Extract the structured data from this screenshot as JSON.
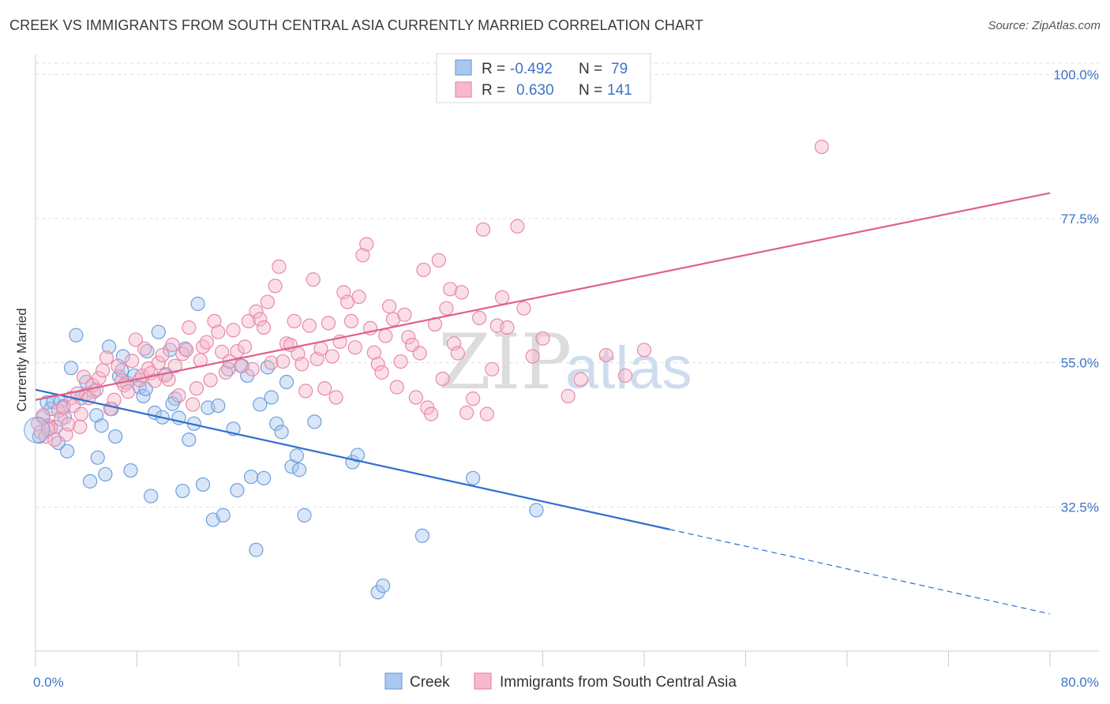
{
  "title": "CREEK VS IMMIGRANTS FROM SOUTH CENTRAL ASIA CURRENTLY MARRIED CORRELATION CHART",
  "source": "Source: ZipAtlas.com",
  "watermark": {
    "zip": "ZIP",
    "atlas": "atlas"
  },
  "legend_top": [
    {
      "r_label": "R =",
      "r_value": "-0.492",
      "n_label": "N =",
      "n_value": "79",
      "color": "#a9c8ef",
      "stroke": "#6e9fdc"
    },
    {
      "r_label": "R =",
      "r_value": "0.630",
      "n_label": "N =",
      "n_value": "141",
      "color": "#f7b8cc",
      "stroke": "#e88aa8"
    }
  ],
  "chart_data": {
    "type": "scatter",
    "title": "CREEK VS IMMIGRANTS FROM SOUTH CENTRAL ASIA CURRENTLY MARRIED CORRELATION CHART",
    "xlabel": "",
    "ylabel": "Currently Married",
    "xlim": [
      0,
      80
    ],
    "ylim": [
      10,
      103
    ],
    "x_tick_labels": [
      {
        "value": 0,
        "label": "0.0%"
      },
      {
        "value": 80,
        "label": "80.0%"
      }
    ],
    "x_minor_ticks": [
      0,
      8,
      16,
      24,
      32,
      40,
      48,
      56,
      64,
      72,
      80
    ],
    "y_ticks": [
      {
        "value": 32.5,
        "label": "32.5%"
      },
      {
        "value": 55.0,
        "label": "55.0%"
      },
      {
        "value": 77.5,
        "label": "77.5%"
      },
      {
        "value": 100.0,
        "label": "100.0%"
      }
    ],
    "grid": true,
    "legend_position": "top-center",
    "series": [
      {
        "name": "Creek",
        "color": "#a9c8ef",
        "stroke": "#6e9fdc",
        "line_color": "#2f6fcf",
        "trend": {
          "x0": 0,
          "y0": 50.8,
          "x1": 50,
          "y1": 29.0,
          "dash_to_x": 80,
          "dash_to_y": 15.8
        },
        "points": [
          [
            0.3,
            43.5
          ],
          [
            0.6,
            46.5
          ],
          [
            0.9,
            48.8
          ],
          [
            1.2,
            47.8
          ],
          [
            1.4,
            48.9
          ],
          [
            1.6,
            45.0
          ],
          [
            1.8,
            42.5
          ],
          [
            2.0,
            49.0
          ],
          [
            2.3,
            46.5
          ],
          [
            2.5,
            41.2
          ],
          [
            2.8,
            54.2
          ],
          [
            3.2,
            59.3
          ],
          [
            3.6,
            49.5
          ],
          [
            4.0,
            52.0
          ],
          [
            4.3,
            36.5
          ],
          [
            4.6,
            50.5
          ],
          [
            4.9,
            40.2
          ],
          [
            5.2,
            45.2
          ],
          [
            5.5,
            37.6
          ],
          [
            5.8,
            57.5
          ],
          [
            6.0,
            47.8
          ],
          [
            6.3,
            43.5
          ],
          [
            6.6,
            52.9
          ],
          [
            6.9,
            56.0
          ],
          [
            7.2,
            51.9
          ],
          [
            7.5,
            38.2
          ],
          [
            7.8,
            53.0
          ],
          [
            8.2,
            51.2
          ],
          [
            8.5,
            49.8
          ],
          [
            8.8,
            56.8
          ],
          [
            9.1,
            34.2
          ],
          [
            9.4,
            47.2
          ],
          [
            9.7,
            59.8
          ],
          [
            10.0,
            46.5
          ],
          [
            10.3,
            53.2
          ],
          [
            10.6,
            57.0
          ],
          [
            11.0,
            49.4
          ],
          [
            11.3,
            46.4
          ],
          [
            11.6,
            35.0
          ],
          [
            11.8,
            57.2
          ],
          [
            12.1,
            43.0
          ],
          [
            12.5,
            45.5
          ],
          [
            12.8,
            64.2
          ],
          [
            13.2,
            36.0
          ],
          [
            13.6,
            48.0
          ],
          [
            14.0,
            30.5
          ],
          [
            14.4,
            48.3
          ],
          [
            14.8,
            31.2
          ],
          [
            15.2,
            54.0
          ],
          [
            15.6,
            44.7
          ],
          [
            15.9,
            35.1
          ],
          [
            16.3,
            54.5
          ],
          [
            16.7,
            53.0
          ],
          [
            17.0,
            37.2
          ],
          [
            17.4,
            25.8
          ],
          [
            17.7,
            48.5
          ],
          [
            18.0,
            37.0
          ],
          [
            18.3,
            54.3
          ],
          [
            18.6,
            49.6
          ],
          [
            19.0,
            45.5
          ],
          [
            19.4,
            44.2
          ],
          [
            19.8,
            52.0
          ],
          [
            20.2,
            38.8
          ],
          [
            20.6,
            40.5
          ],
          [
            20.8,
            38.3
          ],
          [
            21.2,
            31.2
          ],
          [
            22.0,
            45.8
          ],
          [
            25.0,
            39.5
          ],
          [
            25.4,
            40.6
          ],
          [
            27.0,
            19.2
          ],
          [
            27.4,
            20.2
          ],
          [
            30.5,
            28.0
          ],
          [
            34.5,
            37.0
          ],
          [
            39.5,
            32.0
          ],
          [
            2.2,
            48.2
          ],
          [
            4.8,
            46.8
          ],
          [
            6.8,
            53.8
          ],
          [
            8.7,
            50.9
          ],
          [
            10.8,
            48.6
          ]
        ]
      },
      {
        "name": "Immigrants from South Central Asia",
        "color": "#f7b8cc",
        "stroke": "#e88aa8",
        "line_color": "#e0608c",
        "trend": {
          "x0": 0,
          "y0": 49.2,
          "x1": 80,
          "y1": 81.5
        },
        "points": [
          [
            0.2,
            45.5
          ],
          [
            0.4,
            44.2
          ],
          [
            0.6,
            46.8
          ],
          [
            0.8,
            43.5
          ],
          [
            1.0,
            45.2
          ],
          [
            1.2,
            44.8
          ],
          [
            1.5,
            43.0
          ],
          [
            1.8,
            47.5
          ],
          [
            2.0,
            46.2
          ],
          [
            2.2,
            48.0
          ],
          [
            2.4,
            43.8
          ],
          [
            2.6,
            45.4
          ],
          [
            2.8,
            49.5
          ],
          [
            3.0,
            48.3
          ],
          [
            3.3,
            50.2
          ],
          [
            3.6,
            47.0
          ],
          [
            3.8,
            52.8
          ],
          [
            4.0,
            50.1
          ],
          [
            4.2,
            49.5
          ],
          [
            4.5,
            51.5
          ],
          [
            4.8,
            50.8
          ],
          [
            5.0,
            52.6
          ],
          [
            5.3,
            53.8
          ],
          [
            5.6,
            55.8
          ],
          [
            5.9,
            47.8
          ],
          [
            6.2,
            49.2
          ],
          [
            6.5,
            54.5
          ],
          [
            6.8,
            52.2
          ],
          [
            7.0,
            51.5
          ],
          [
            7.3,
            50.5
          ],
          [
            7.6,
            55.3
          ],
          [
            7.9,
            58.6
          ],
          [
            8.2,
            52.3
          ],
          [
            8.4,
            53.0
          ],
          [
            8.6,
            57.2
          ],
          [
            8.9,
            54.1
          ],
          [
            9.1,
            53.4
          ],
          [
            9.4,
            52.2
          ],
          [
            9.7,
            55.0
          ],
          [
            10.0,
            56.2
          ],
          [
            10.2,
            53.0
          ],
          [
            10.5,
            52.4
          ],
          [
            10.8,
            57.8
          ],
          [
            11.0,
            54.5
          ],
          [
            11.3,
            49.9
          ],
          [
            11.6,
            56.4
          ],
          [
            11.9,
            57.0
          ],
          [
            12.1,
            60.5
          ],
          [
            12.4,
            48.5
          ],
          [
            12.7,
            51.0
          ],
          [
            13.0,
            55.4
          ],
          [
            13.2,
            57.5
          ],
          [
            13.5,
            58.2
          ],
          [
            13.8,
            52.3
          ],
          [
            14.1,
            61.5
          ],
          [
            14.4,
            59.8
          ],
          [
            14.7,
            56.7
          ],
          [
            15.0,
            53.5
          ],
          [
            15.3,
            55.2
          ],
          [
            15.6,
            60.1
          ],
          [
            15.9,
            56.8
          ],
          [
            16.2,
            54.5
          ],
          [
            16.5,
            57.5
          ],
          [
            16.8,
            61.5
          ],
          [
            17.1,
            54.0
          ],
          [
            17.4,
            63.0
          ],
          [
            17.7,
            61.8
          ],
          [
            18.0,
            60.5
          ],
          [
            18.3,
            64.5
          ],
          [
            18.6,
            55.0
          ],
          [
            18.9,
            67.0
          ],
          [
            19.2,
            70.0
          ],
          [
            19.5,
            55.2
          ],
          [
            19.8,
            58.0
          ],
          [
            20.1,
            57.8
          ],
          [
            20.4,
            61.5
          ],
          [
            20.7,
            56.4
          ],
          [
            21.0,
            54.8
          ],
          [
            21.3,
            50.6
          ],
          [
            21.6,
            60.8
          ],
          [
            21.9,
            68.0
          ],
          [
            22.2,
            55.6
          ],
          [
            22.5,
            57.2
          ],
          [
            22.8,
            51.0
          ],
          [
            23.1,
            61.2
          ],
          [
            23.4,
            56.0
          ],
          [
            23.7,
            49.6
          ],
          [
            24.0,
            58.3
          ],
          [
            24.3,
            66.0
          ],
          [
            24.6,
            64.5
          ],
          [
            24.9,
            61.5
          ],
          [
            25.2,
            57.4
          ],
          [
            25.5,
            65.3
          ],
          [
            25.8,
            71.8
          ],
          [
            26.1,
            73.5
          ],
          [
            26.4,
            60.4
          ],
          [
            26.7,
            56.6
          ],
          [
            27.0,
            54.8
          ],
          [
            27.3,
            53.5
          ],
          [
            27.6,
            59.2
          ],
          [
            27.9,
            63.8
          ],
          [
            28.2,
            61.8
          ],
          [
            28.5,
            51.2
          ],
          [
            28.8,
            55.2
          ],
          [
            29.1,
            62.5
          ],
          [
            29.4,
            59.0
          ],
          [
            29.7,
            57.8
          ],
          [
            30.0,
            49.6
          ],
          [
            30.3,
            56.5
          ],
          [
            30.6,
            69.5
          ],
          [
            30.9,
            48.0
          ],
          [
            31.2,
            47.0
          ],
          [
            31.5,
            61.0
          ],
          [
            31.8,
            71.0
          ],
          [
            32.1,
            52.5
          ],
          [
            32.4,
            63.5
          ],
          [
            32.7,
            66.5
          ],
          [
            33.0,
            58.0
          ],
          [
            33.3,
            56.5
          ],
          [
            33.6,
            66.0
          ],
          [
            34.0,
            47.2
          ],
          [
            34.5,
            49.4
          ],
          [
            35.0,
            62.0
          ],
          [
            35.3,
            75.8
          ],
          [
            35.6,
            47.0
          ],
          [
            36.0,
            54.0
          ],
          [
            36.4,
            60.8
          ],
          [
            36.8,
            65.2
          ],
          [
            37.2,
            60.5
          ],
          [
            38.0,
            76.3
          ],
          [
            38.5,
            63.5
          ],
          [
            39.2,
            56.0
          ],
          [
            40.0,
            58.8
          ],
          [
            42.0,
            49.8
          ],
          [
            43.0,
            52.4
          ],
          [
            45.0,
            56.2
          ],
          [
            46.5,
            53.0
          ],
          [
            48.0,
            57.0
          ],
          [
            62.0,
            88.7
          ],
          [
            1.0,
            44.6
          ],
          [
            3.5,
            45.0
          ]
        ]
      }
    ]
  },
  "bottom_legend": [
    {
      "label": "Creek",
      "color": "#a9c8ef",
      "stroke": "#6e9fdc"
    },
    {
      "label": "Immigrants from South Central Asia",
      "color": "#f7b8cc",
      "stroke": "#e88aa8"
    }
  ]
}
